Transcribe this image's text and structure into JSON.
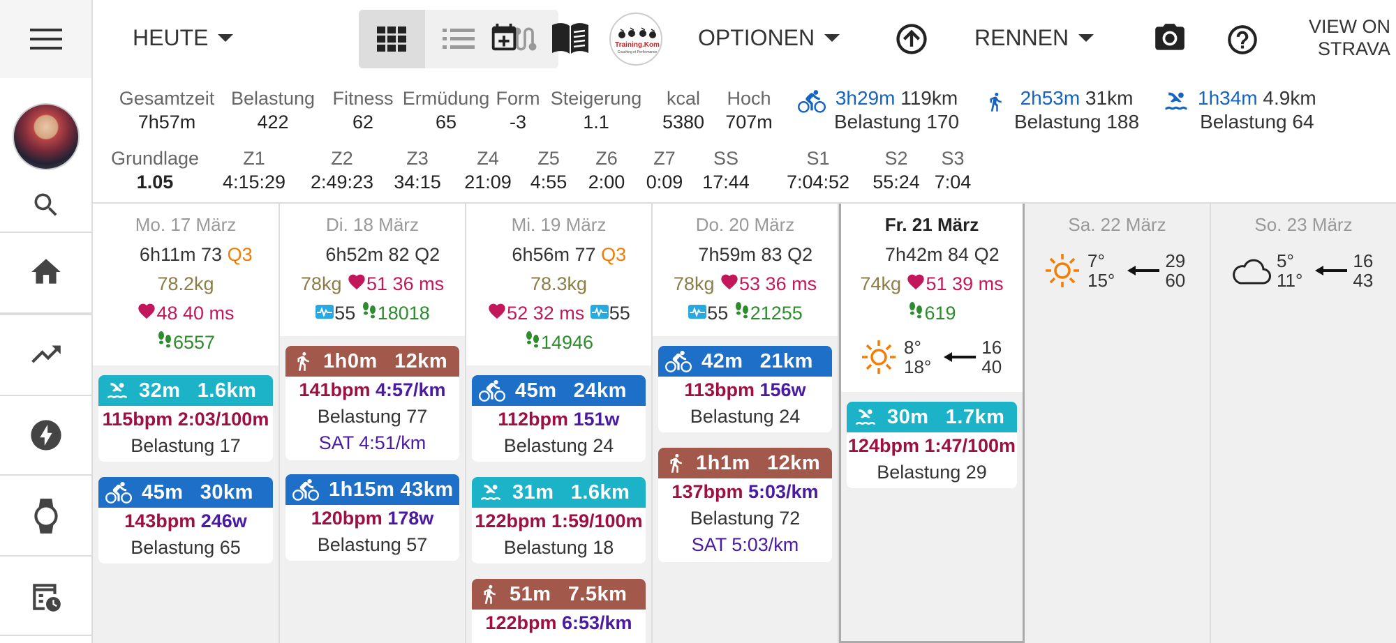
{
  "toolbar": {
    "menu_icon": "hamburger-icon",
    "period_label": "HEUTE",
    "view_modes": [
      "grid-icon",
      "list-icon",
      "route-icon"
    ],
    "options_label": "OPTIONEN",
    "race_label": "RENNEN",
    "strava_line1": "VIEW ON",
    "strava_line2": "STRAVA",
    "logo_text": "Training.Kom",
    "logo_sub": "Coaching et Performance"
  },
  "sidebar": {
    "items": [
      "search-icon",
      "home-icon",
      "trending-icon",
      "bolt-icon",
      "watch-icon",
      "calendar-clock-icon"
    ]
  },
  "stats": {
    "row1": [
      {
        "label": "Gesamtzeit",
        "value": "7h57m"
      },
      {
        "label": "Belastung",
        "value": "422"
      },
      {
        "label": "Fitness",
        "value": "62"
      },
      {
        "label": "Ermüdung",
        "value": "65"
      },
      {
        "label": "Form",
        "value": "-3"
      },
      {
        "label": "Steigerung",
        "value": "1.1"
      },
      {
        "label": "kcal",
        "value": "5380"
      },
      {
        "label": "Hoch",
        "value": "707m"
      }
    ],
    "sports": [
      {
        "icon": "bike-icon",
        "time": "3h29m",
        "dist": "119km",
        "load": "Belastung 170"
      },
      {
        "icon": "run-icon",
        "time": "2h53m",
        "dist": "31km",
        "load": "Belastung 188"
      },
      {
        "icon": "swim-icon",
        "time": "1h34m",
        "dist": "4.9km",
        "load": "Belastung 64"
      }
    ],
    "row2": [
      {
        "label": "Grundlage",
        "value": "1.05"
      },
      {
        "label": "Z1",
        "value": "4:15:29"
      },
      {
        "label": "Z2",
        "value": "2:49:23"
      },
      {
        "label": "Z3",
        "value": "34:15"
      },
      {
        "label": "Z4",
        "value": "21:09"
      },
      {
        "label": "Z5",
        "value": "4:55"
      },
      {
        "label": "Z6",
        "value": "2:00"
      },
      {
        "label": "Z7",
        "value": "0:09"
      },
      {
        "label": "SS",
        "value": "17:44"
      },
      {
        "label": "S1",
        "value": "7:04:52"
      },
      {
        "label": "S2",
        "value": "55:24"
      },
      {
        "label": "S3",
        "value": "7:04"
      }
    ]
  },
  "days": [
    {
      "title": "Mo. 17 März",
      "sleep": "6h11m",
      "score": "73",
      "q": "Q3",
      "weight": "78.2kg",
      "hr": "48",
      "hrv": "40 ms",
      "steps": "6557",
      "cards": [
        {
          "type": "swim",
          "dur": "32m",
          "dist": "1.6km",
          "bpm": "115bpm",
          "metric": "2:03/100m",
          "load": "Belastung 17"
        },
        {
          "type": "bike",
          "dur": "45m",
          "dist": "30km",
          "bpm": "143bpm",
          "metric": "246w",
          "load": "Belastung 65"
        }
      ]
    },
    {
      "title": "Di. 18 März",
      "sleep": "6h52m",
      "score": "82",
      "q": "Q2",
      "weight": "78kg",
      "hr": "51",
      "hrv": "36 ms",
      "stress": "55",
      "steps": "18018",
      "cards": [
        {
          "type": "run",
          "dur": "1h0m",
          "dist": "12km",
          "bpm": "141bpm",
          "metric": "4:57/km",
          "load": "Belastung 77",
          "sat": "SAT 4:51/km"
        },
        {
          "type": "bike",
          "dur": "1h15m",
          "dist": "43km",
          "bpm": "120bpm",
          "metric": "178w",
          "load": "Belastung 57"
        }
      ]
    },
    {
      "title": "Mi. 19 März",
      "sleep": "6h56m",
      "score": "77",
      "q": "Q3",
      "weight": "78.3kg",
      "hr": "52",
      "hrv": "32 ms",
      "stress": "55",
      "steps": "14946",
      "cards": [
        {
          "type": "bike",
          "dur": "45m",
          "dist": "24km",
          "bpm": "112bpm",
          "metric": "151w",
          "load": "Belastung 24"
        },
        {
          "type": "swim",
          "dur": "31m",
          "dist": "1.6km",
          "bpm": "122bpm",
          "metric": "1:59/100m",
          "load": "Belastung 18"
        },
        {
          "type": "run",
          "dur": "51m",
          "dist": "7.5km",
          "bpm": "122bpm",
          "metric": "6:53/km"
        }
      ]
    },
    {
      "title": "Do. 20 März",
      "sleep": "7h59m",
      "score": "83",
      "q": "Q2",
      "weight": "78kg",
      "hr": "53",
      "hrv": "36 ms",
      "stress": "55",
      "steps": "21255",
      "cards": [
        {
          "type": "bike",
          "dur": "42m",
          "dist": "21km",
          "bpm": "113bpm",
          "metric": "156w",
          "load": "Belastung 24"
        },
        {
          "type": "run",
          "dur": "1h1m",
          "dist": "12km",
          "bpm": "137bpm",
          "metric": "5:03/km",
          "load": "Belastung 72",
          "sat": "SAT 5:03/km"
        }
      ]
    },
    {
      "title": "Fr. 21 März",
      "sleep": "7h42m",
      "score": "84",
      "q": "Q2",
      "weight": "74kg",
      "hr": "51",
      "hrv": "39 ms",
      "steps": "619",
      "weather": {
        "icon": "sun-icon",
        "lo": "8°",
        "hi": "18°",
        "wind1": "16",
        "wind2": "40"
      },
      "cards": [
        {
          "type": "swim",
          "dur": "30m",
          "dist": "1.7km",
          "bpm": "124bpm",
          "metric": "1:47/100m",
          "load": "Belastung 29"
        }
      ]
    },
    {
      "title": "Sa. 22 März",
      "weather": {
        "icon": "sun-icon",
        "lo": "7°",
        "hi": "15°",
        "wind1": "29",
        "wind2": "60"
      }
    },
    {
      "title": "So. 23 März",
      "weather": {
        "icon": "cloud-icon",
        "lo": "5°",
        "hi": "11°",
        "wind1": "16",
        "wind2": "43"
      }
    }
  ],
  "colors": {
    "swim": "#1cb3c9",
    "bike": "#1e6fc7",
    "run": "#a2584a",
    "heart": "#c2185b",
    "steps": "#2e8b2e",
    "qhigh": "#f57c00"
  }
}
